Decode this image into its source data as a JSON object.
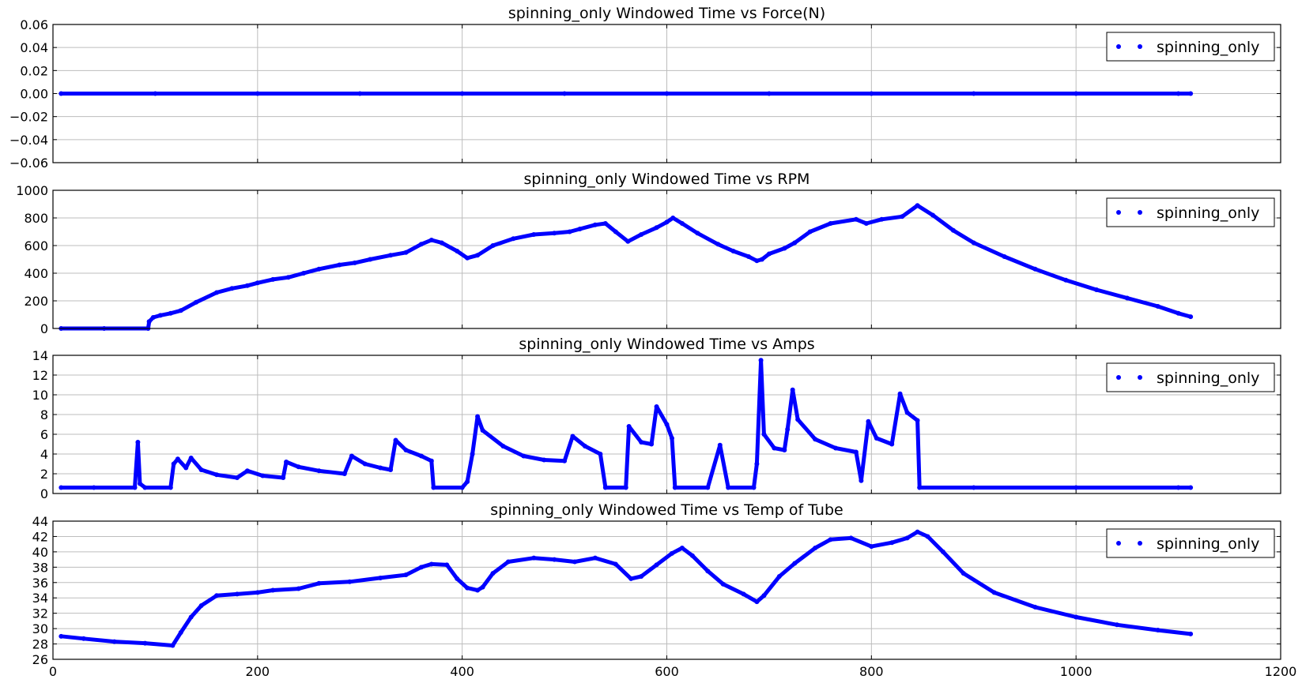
{
  "chart_data": [
    {
      "type": "scatter",
      "title": "spinning_only Windowed Time vs Force(N)",
      "xlabel": "",
      "ylabel": "",
      "xlim": [
        0,
        1200
      ],
      "ylim": [
        -0.06,
        0.06
      ],
      "x_ticks": [
        "0",
        "200",
        "400",
        "600",
        "800",
        "1000",
        "1200"
      ],
      "y_ticks": [
        "0.06",
        "0.04",
        "0.02",
        "0.00",
        "−0.02",
        "−0.04",
        "−0.06"
      ],
      "show_x_tick_labels": false,
      "grid": true,
      "legend": "top-right",
      "series": [
        {
          "name": "spinning_only",
          "color": "#0000ff",
          "points": [
            [
              8,
              0
            ],
            [
              100,
              0
            ],
            [
              200,
              0
            ],
            [
              300,
              0
            ],
            [
              400,
              0
            ],
            [
              500,
              0
            ],
            [
              600,
              0
            ],
            [
              700,
              0
            ],
            [
              800,
              0
            ],
            [
              900,
              0
            ],
            [
              1000,
              0
            ],
            [
              1100,
              0
            ],
            [
              1112,
              0
            ]
          ]
        }
      ]
    },
    {
      "type": "scatter",
      "title": "spinning_only Windowed Time vs RPM",
      "xlabel": "",
      "ylabel": "",
      "xlim": [
        0,
        1200
      ],
      "ylim": [
        0,
        1000
      ],
      "x_ticks": [
        "0",
        "200",
        "400",
        "600",
        "800",
        "1000",
        "1200"
      ],
      "y_ticks": [
        "1000",
        "800",
        "600",
        "400",
        "200",
        "0"
      ],
      "show_x_tick_labels": false,
      "grid": true,
      "legend": "top-right",
      "series": [
        {
          "name": "spinning_only",
          "color": "#0000ff",
          "points": [
            [
              8,
              0
            ],
            [
              50,
              0
            ],
            [
              93,
              0
            ],
            [
              94,
              50
            ],
            [
              98,
              80
            ],
            [
              105,
              95
            ],
            [
              115,
              110
            ],
            [
              125,
              130
            ],
            [
              140,
              190
            ],
            [
              160,
              260
            ],
            [
              175,
              290
            ],
            [
              190,
              310
            ],
            [
              200,
              330
            ],
            [
              215,
              355
            ],
            [
              230,
              370
            ],
            [
              245,
              400
            ],
            [
              260,
              430
            ],
            [
              280,
              460
            ],
            [
              295,
              475
            ],
            [
              310,
              500
            ],
            [
              330,
              530
            ],
            [
              345,
              550
            ],
            [
              360,
              610
            ],
            [
              370,
              640
            ],
            [
              380,
              620
            ],
            [
              395,
              560
            ],
            [
              405,
              510
            ],
            [
              415,
              530
            ],
            [
              430,
              600
            ],
            [
              450,
              650
            ],
            [
              470,
              680
            ],
            [
              490,
              690
            ],
            [
              505,
              700
            ],
            [
              515,
              720
            ],
            [
              530,
              750
            ],
            [
              540,
              760
            ],
            [
              550,
              700
            ],
            [
              562,
              630
            ],
            [
              575,
              680
            ],
            [
              590,
              730
            ],
            [
              600,
              770
            ],
            [
              606,
              800
            ],
            [
              615,
              760
            ],
            [
              630,
              690
            ],
            [
              650,
              610
            ],
            [
              665,
              560
            ],
            [
              680,
              520
            ],
            [
              688,
              490
            ],
            [
              693,
              500
            ],
            [
              700,
              540
            ],
            [
              715,
              580
            ],
            [
              725,
              620
            ],
            [
              740,
              700
            ],
            [
              760,
              760
            ],
            [
              785,
              790
            ],
            [
              795,
              760
            ],
            [
              810,
              790
            ],
            [
              830,
              810
            ],
            [
              845,
              890
            ],
            [
              860,
              820
            ],
            [
              880,
              710
            ],
            [
              900,
              620
            ],
            [
              930,
              520
            ],
            [
              960,
              430
            ],
            [
              990,
              350
            ],
            [
              1020,
              280
            ],
            [
              1050,
              220
            ],
            [
              1080,
              160
            ],
            [
              1100,
              110
            ],
            [
              1112,
              85
            ]
          ]
        }
      ]
    },
    {
      "type": "scatter",
      "title": "spinning_only Windowed Time vs Amps",
      "xlabel": "",
      "ylabel": "",
      "xlim": [
        0,
        1200
      ],
      "ylim": [
        0,
        14
      ],
      "x_ticks": [
        "0",
        "200",
        "400",
        "600",
        "800",
        "1000",
        "1200"
      ],
      "y_ticks": [
        "14",
        "12",
        "10",
        "8",
        "6",
        "4",
        "2",
        "0"
      ],
      "show_x_tick_labels": false,
      "grid": true,
      "legend": "top-right",
      "series": [
        {
          "name": "spinning_only",
          "color": "#0000ff",
          "points": [
            [
              8,
              0.6
            ],
            [
              40,
              0.6
            ],
            [
              80,
              0.6
            ],
            [
              83,
              5.2
            ],
            [
              85,
              1.0
            ],
            [
              90,
              0.6
            ],
            [
              115,
              0.6
            ],
            [
              118,
              3.0
            ],
            [
              122,
              3.5
            ],
            [
              130,
              2.6
            ],
            [
              135,
              3.6
            ],
            [
              145,
              2.4
            ],
            [
              160,
              1.9
            ],
            [
              180,
              1.6
            ],
            [
              190,
              2.3
            ],
            [
              205,
              1.8
            ],
            [
              225,
              1.6
            ],
            [
              228,
              3.2
            ],
            [
              240,
              2.7
            ],
            [
              260,
              2.3
            ],
            [
              285,
              2.0
            ],
            [
              292,
              3.8
            ],
            [
              305,
              3.0
            ],
            [
              320,
              2.6
            ],
            [
              330,
              2.4
            ],
            [
              335,
              5.4
            ],
            [
              345,
              4.4
            ],
            [
              360,
              3.8
            ],
            [
              370,
              3.3
            ],
            [
              372,
              0.6
            ],
            [
              400,
              0.6
            ],
            [
              405,
              1.2
            ],
            [
              410,
              4.0
            ],
            [
              415,
              7.8
            ],
            [
              420,
              6.4
            ],
            [
              440,
              4.8
            ],
            [
              460,
              3.8
            ],
            [
              480,
              3.4
            ],
            [
              500,
              3.3
            ],
            [
              508,
              5.8
            ],
            [
              520,
              4.8
            ],
            [
              535,
              4.0
            ],
            [
              540,
              0.6
            ],
            [
              560,
              0.6
            ],
            [
              563,
              6.8
            ],
            [
              575,
              5.2
            ],
            [
              585,
              5.0
            ],
            [
              590,
              8.8
            ],
            [
              600,
              7.0
            ],
            [
              605,
              5.6
            ],
            [
              608,
              0.6
            ],
            [
              640,
              0.6
            ],
            [
              652,
              4.9
            ],
            [
              660,
              0.6
            ],
            [
              685,
              0.6
            ],
            [
              688,
              3.0
            ],
            [
              692,
              13.5
            ],
            [
              695,
              6.0
            ],
            [
              705,
              4.6
            ],
            [
              715,
              4.4
            ],
            [
              718,
              6.5
            ],
            [
              723,
              10.5
            ],
            [
              728,
              7.5
            ],
            [
              745,
              5.5
            ],
            [
              765,
              4.6
            ],
            [
              785,
              4.2
            ],
            [
              790,
              1.3
            ],
            [
              797,
              7.3
            ],
            [
              805,
              5.6
            ],
            [
              820,
              5.0
            ],
            [
              828,
              10.1
            ],
            [
              835,
              8.2
            ],
            [
              845,
              7.4
            ],
            [
              847,
              0.6
            ],
            [
              900,
              0.6
            ],
            [
              1000,
              0.6
            ],
            [
              1100,
              0.6
            ],
            [
              1112,
              0.6
            ]
          ]
        }
      ]
    },
    {
      "type": "scatter",
      "title": "spinning_only Windowed Time vs Temp of Tube",
      "xlabel": "",
      "ylabel": "",
      "xlim": [
        0,
        1200
      ],
      "ylim": [
        26,
        44
      ],
      "x_ticks": [
        "0",
        "200",
        "400",
        "600",
        "800",
        "1000",
        "1200"
      ],
      "y_ticks": [
        "44",
        "42",
        "40",
        "38",
        "36",
        "34",
        "32",
        "30",
        "28",
        "26"
      ],
      "show_x_tick_labels": true,
      "grid": true,
      "legend": "top-right",
      "series": [
        {
          "name": "spinning_only",
          "color": "#0000ff",
          "points": [
            [
              8,
              29.0
            ],
            [
              30,
              28.7
            ],
            [
              60,
              28.3
            ],
            [
              90,
              28.1
            ],
            [
              117,
              27.8
            ],
            [
              125,
              29.5
            ],
            [
              135,
              31.5
            ],
            [
              145,
              33.0
            ],
            [
              160,
              34.3
            ],
            [
              180,
              34.5
            ],
            [
              200,
              34.7
            ],
            [
              215,
              35.0
            ],
            [
              240,
              35.2
            ],
            [
              260,
              35.9
            ],
            [
              290,
              36.1
            ],
            [
              320,
              36.6
            ],
            [
              345,
              37.0
            ],
            [
              360,
              38.0
            ],
            [
              370,
              38.4
            ],
            [
              385,
              38.3
            ],
            [
              395,
              36.5
            ],
            [
              405,
              35.3
            ],
            [
              415,
              35.0
            ],
            [
              420,
              35.4
            ],
            [
              430,
              37.2
            ],
            [
              445,
              38.7
            ],
            [
              470,
              39.2
            ],
            [
              490,
              39.0
            ],
            [
              510,
              38.7
            ],
            [
              530,
              39.2
            ],
            [
              550,
              38.4
            ],
            [
              565,
              36.5
            ],
            [
              575,
              36.8
            ],
            [
              590,
              38.3
            ],
            [
              605,
              39.8
            ],
            [
              615,
              40.5
            ],
            [
              625,
              39.5
            ],
            [
              640,
              37.5
            ],
            [
              655,
              35.8
            ],
            [
              675,
              34.5
            ],
            [
              688,
              33.5
            ],
            [
              695,
              34.3
            ],
            [
              710,
              36.8
            ],
            [
              725,
              38.5
            ],
            [
              745,
              40.5
            ],
            [
              760,
              41.6
            ],
            [
              780,
              41.8
            ],
            [
              800,
              40.7
            ],
            [
              820,
              41.2
            ],
            [
              835,
              41.8
            ],
            [
              845,
              42.6
            ],
            [
              855,
              42.0
            ],
            [
              870,
              40.0
            ],
            [
              890,
              37.2
            ],
            [
              920,
              34.7
            ],
            [
              960,
              32.8
            ],
            [
              1000,
              31.5
            ],
            [
              1040,
              30.5
            ],
            [
              1080,
              29.8
            ],
            [
              1112,
              29.3
            ]
          ]
        }
      ]
    }
  ]
}
